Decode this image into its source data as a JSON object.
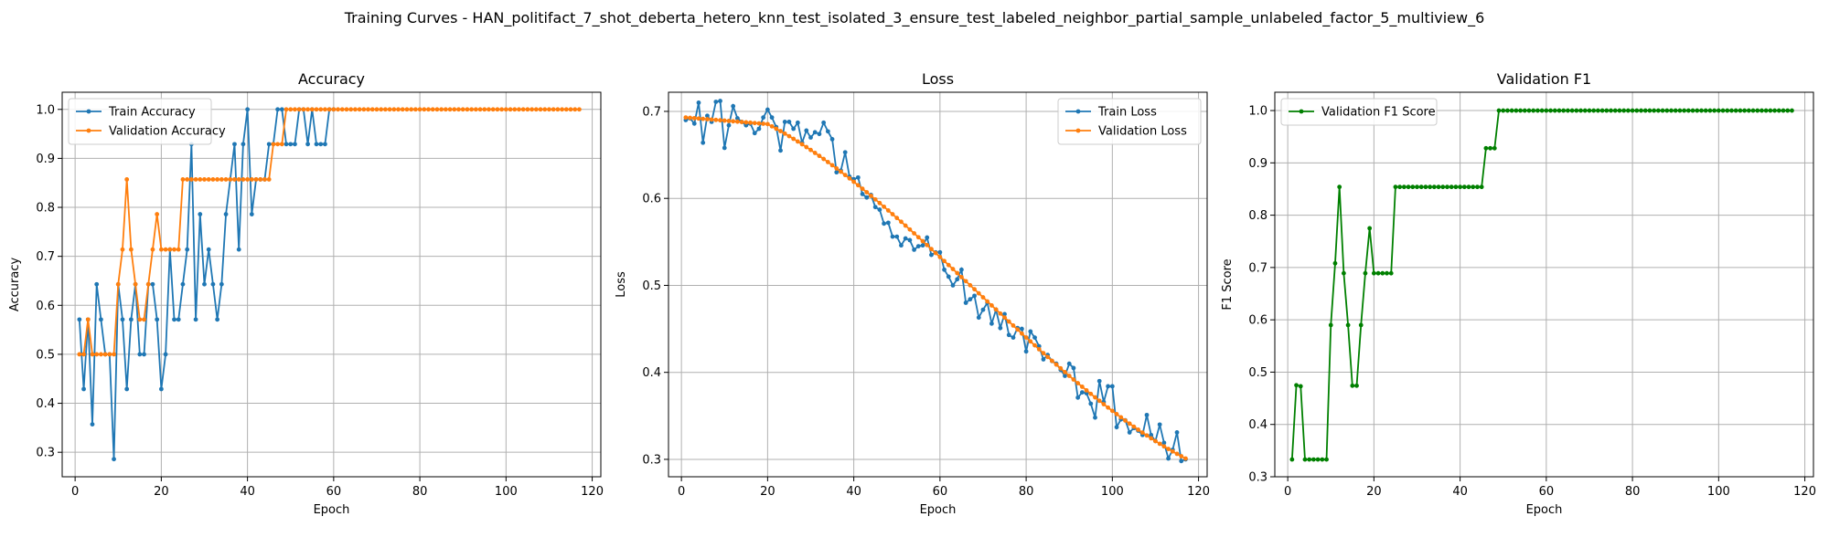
{
  "figure": {
    "title": "Training Curves - HAN_politifact_7_shot_deberta_hetero_knn_test_isolated_3_ensure_test_labeled_neighbor_partial_sample_unlabeled_factor_5_multiview_6"
  },
  "colors": {
    "train": "#1f77b4",
    "validation": "#ff7f0e",
    "f1": "#008000"
  },
  "chart_data": [
    {
      "type": "line",
      "title": "Accuracy",
      "xlabel": "Epoch",
      "ylabel": "Accuracy",
      "xlim": [
        -3,
        122
      ],
      "ylim": [
        0.25,
        1.035
      ],
      "xticks": [
        0,
        20,
        40,
        60,
        80,
        100,
        120
      ],
      "yticks": [
        0.3,
        0.4,
        0.5,
        0.6,
        0.7,
        0.8,
        0.9,
        1.0
      ],
      "ytick_labels": [
        "0.3",
        "0.4",
        "0.5",
        "0.6",
        "0.7",
        "0.8",
        "0.9",
        "1.0"
      ],
      "grid": true,
      "legend": "upper left",
      "series": [
        {
          "name": "Train Accuracy",
          "color": "#1f77b4",
          "x_start": 1,
          "y": [
            0.571,
            0.429,
            0.571,
            0.357,
            0.643,
            0.571,
            0.5,
            0.5,
            0.286,
            0.643,
            0.571,
            0.429,
            0.571,
            0.643,
            0.5,
            0.5,
            0.643,
            0.643,
            0.571,
            0.429,
            0.5,
            0.714,
            0.571,
            0.571,
            0.643,
            0.714,
            0.929,
            0.571,
            0.786,
            0.643,
            0.714,
            0.643,
            0.571,
            0.643,
            0.786,
            0.857,
            0.929,
            0.714,
            0.929,
            1.0,
            0.786,
            0.857,
            0.857,
            0.857,
            0.929,
            0.929,
            1.0,
            1.0,
            0.929,
            0.929,
            0.929,
            1.0,
            1.0,
            0.929,
            1.0,
            0.929,
            0.929,
            0.929,
            1.0,
            1.0
          ]
        },
        {
          "name": "Validation Accuracy",
          "color": "#ff7f0e",
          "x_start": 1,
          "y": [
            0.5,
            0.5,
            0.571,
            0.5,
            0.5,
            0.5,
            0.5,
            0.5,
            0.5,
            0.643,
            0.714,
            0.857,
            0.714,
            0.643,
            0.571,
            0.571,
            0.643,
            0.714,
            0.786,
            0.714,
            0.714,
            0.714,
            0.714,
            0.714,
            0.857,
            0.857,
            0.857,
            0.857,
            0.857,
            0.857,
            0.857,
            0.857,
            0.857,
            0.857,
            0.857,
            0.857,
            0.857,
            0.857,
            0.857,
            0.857,
            0.857,
            0.857,
            0.857,
            0.857,
            0.857,
            0.929,
            0.929,
            0.929,
            1.0
          ],
          "tail_value": 1.0,
          "x_end": 117
        }
      ]
    },
    {
      "type": "line",
      "title": "Loss",
      "xlabel": "Epoch",
      "ylabel": "Loss",
      "xlim": [
        -3,
        122
      ],
      "ylim": [
        0.28,
        0.722
      ],
      "xticks": [
        0,
        20,
        40,
        60,
        80,
        100,
        120
      ],
      "yticks": [
        0.3,
        0.4,
        0.5,
        0.6,
        0.7
      ],
      "ytick_labels": [
        "0.3",
        "0.4",
        "0.5",
        "0.6",
        "0.7"
      ],
      "grid": true,
      "legend": "upper right",
      "series": [
        {
          "name": "Train Loss",
          "color": "#1f77b4",
          "x_start": 1,
          "y": [
            0.69,
            0.692,
            0.686,
            0.71,
            0.664,
            0.695,
            0.688,
            0.711,
            0.712,
            0.658,
            0.684,
            0.706,
            0.692,
            0.688,
            0.684,
            0.686,
            0.675,
            0.68,
            0.693,
            0.702,
            0.693,
            0.682,
            0.655,
            0.688,
            0.688,
            0.68,
            0.687,
            0.664,
            0.678,
            0.67,
            0.676,
            0.674,
            0.687,
            0.677,
            0.668,
            0.63,
            0.632,
            0.653,
            0.625,
            0.622,
            0.624,
            0.605,
            0.601,
            0.604,
            0.59,
            0.587,
            0.571,
            0.572,
            0.556,
            0.556,
            0.546,
            0.554,
            0.552,
            0.541,
            0.545,
            0.546,
            0.555,
            0.535,
            0.538,
            0.538,
            0.518,
            0.51,
            0.5,
            0.507,
            0.518,
            0.48,
            0.484,
            0.488,
            0.463,
            0.472,
            0.48,
            0.456,
            0.472,
            0.451,
            0.467,
            0.443,
            0.44,
            0.451,
            0.45,
            0.424,
            0.447,
            0.44,
            0.43,
            0.415,
            0.42,
            0.413,
            0.41,
            0.403,
            0.396,
            0.41,
            0.405,
            0.371,
            0.377,
            0.376,
            0.364,
            0.348,
            0.39,
            0.366,
            0.384,
            0.384,
            0.337,
            0.346,
            0.345,
            0.331,
            0.336,
            0.333,
            0.328,
            0.351,
            0.328,
            0.321,
            0.34,
            0.319,
            0.301,
            0.311,
            0.331,
            0.298,
            0.3
          ]
        },
        {
          "name": "Validation Loss",
          "color": "#ff7f0e",
          "x_start": 1,
          "decline": {
            "y0": 0.693,
            "y_end": 0.301,
            "x_end": 117,
            "flat_until": 20
          }
        }
      ]
    },
    {
      "type": "line",
      "title": "Validation F1",
      "xlabel": "Epoch",
      "ylabel": "F1 Score",
      "xlim": [
        -3,
        122
      ],
      "ylim": [
        0.3,
        1.035
      ],
      "xticks": [
        0,
        20,
        40,
        60,
        80,
        100,
        120
      ],
      "yticks": [
        0.3,
        0.4,
        0.5,
        0.6,
        0.7,
        0.8,
        0.9,
        1.0
      ],
      "ytick_labels": [
        "0.3",
        "0.4",
        "0.5",
        "0.6",
        "0.7",
        "0.8",
        "0.9",
        "1.0"
      ],
      "grid": true,
      "legend": "upper left",
      "series": [
        {
          "name": "Validation F1 Score",
          "color": "#008000",
          "x_start": 1,
          "y": [
            0.333,
            0.475,
            0.473,
            0.333,
            0.333,
            0.333,
            0.333,
            0.333,
            0.333,
            0.59,
            0.708,
            0.854,
            0.689,
            0.59,
            0.474,
            0.474,
            0.59,
            0.689,
            0.775,
            0.689,
            0.689,
            0.689,
            0.689,
            0.689,
            0.854,
            0.854,
            0.854,
            0.854,
            0.854,
            0.854,
            0.854,
            0.854,
            0.854,
            0.854,
            0.854,
            0.854,
            0.854,
            0.854,
            0.854,
            0.854,
            0.854,
            0.854,
            0.854,
            0.854,
            0.854,
            0.928,
            0.928,
            0.928,
            1.0
          ],
          "tail_value": 1.0,
          "x_end": 117
        }
      ]
    }
  ]
}
